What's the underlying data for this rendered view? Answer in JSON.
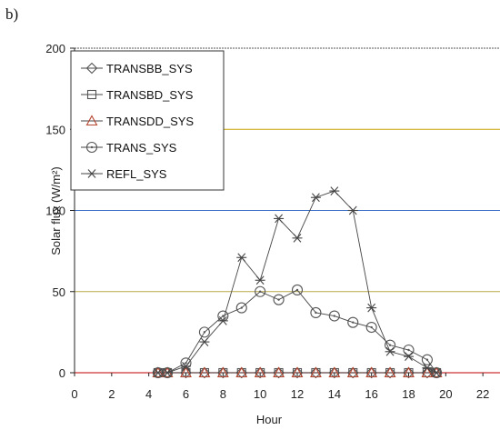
{
  "panel_label": "b)",
  "chart_data": {
    "type": "line",
    "title": "",
    "xlabel": "Hour",
    "ylabel": "Solar flux (W/m²)",
    "xlim": [
      0,
      24
    ],
    "ylim": [
      0,
      200
    ],
    "xticks": [
      0,
      2,
      4,
      6,
      8,
      10,
      12,
      14,
      16,
      18,
      20,
      22
    ],
    "yticks": [
      0,
      50,
      100,
      150,
      200
    ],
    "grid": "horizontal",
    "gridline_colors": [
      "#cc3333",
      "#b8a94a",
      "#3b6fc4",
      "#c8a200",
      "#555555"
    ],
    "legend_position": "top-left",
    "series": [
      {
        "name": "TRANSBB_SYS",
        "marker": "diamond",
        "x": [
          4.5,
          5,
          6,
          7,
          8,
          9,
          10,
          11,
          12,
          13,
          14,
          15,
          16,
          17,
          18,
          19,
          19.5
        ],
        "y": [
          0,
          0,
          0,
          0,
          0,
          0,
          0,
          0,
          0,
          0,
          0,
          0,
          0,
          0,
          0,
          0,
          0
        ]
      },
      {
        "name": "TRANSBD_SYS",
        "marker": "square",
        "x": [
          4.5,
          5,
          6,
          7,
          8,
          9,
          10,
          11,
          12,
          13,
          14,
          15,
          16,
          17,
          18,
          19,
          19.5
        ],
        "y": [
          0,
          0,
          0,
          0,
          0,
          0,
          0,
          0,
          0,
          0,
          0,
          0,
          0,
          0,
          0,
          0,
          0
        ]
      },
      {
        "name": "TRANSDD_SYS",
        "marker": "triangle",
        "x": [
          4.5,
          5,
          6,
          7,
          8,
          9,
          10,
          11,
          12,
          13,
          14,
          15,
          16,
          17,
          18,
          19,
          19.5
        ],
        "y": [
          0,
          0,
          0,
          0,
          0,
          0,
          0,
          0,
          0,
          0,
          0,
          0,
          0,
          0,
          0,
          0,
          0
        ]
      },
      {
        "name": "TRANS_SYS",
        "marker": "circle",
        "x": [
          4.5,
          5,
          6,
          7,
          8,
          9,
          10,
          11,
          12,
          13,
          14,
          15,
          16,
          17,
          18,
          19,
          19.5
        ],
        "y": [
          0,
          0,
          6,
          25,
          35,
          40,
          50,
          45,
          51,
          37,
          35,
          31,
          28,
          17,
          14,
          8,
          0
        ]
      },
      {
        "name": "REFL_SYS",
        "marker": "star",
        "x": [
          4.5,
          5,
          6,
          7,
          8,
          9,
          10,
          11,
          12,
          13,
          14,
          15,
          16,
          17,
          18,
          19,
          19.5
        ],
        "y": [
          0,
          0,
          4,
          19,
          32,
          71,
          57,
          95,
          83,
          108,
          112,
          100,
          40,
          13,
          10,
          3,
          0
        ]
      }
    ]
  }
}
